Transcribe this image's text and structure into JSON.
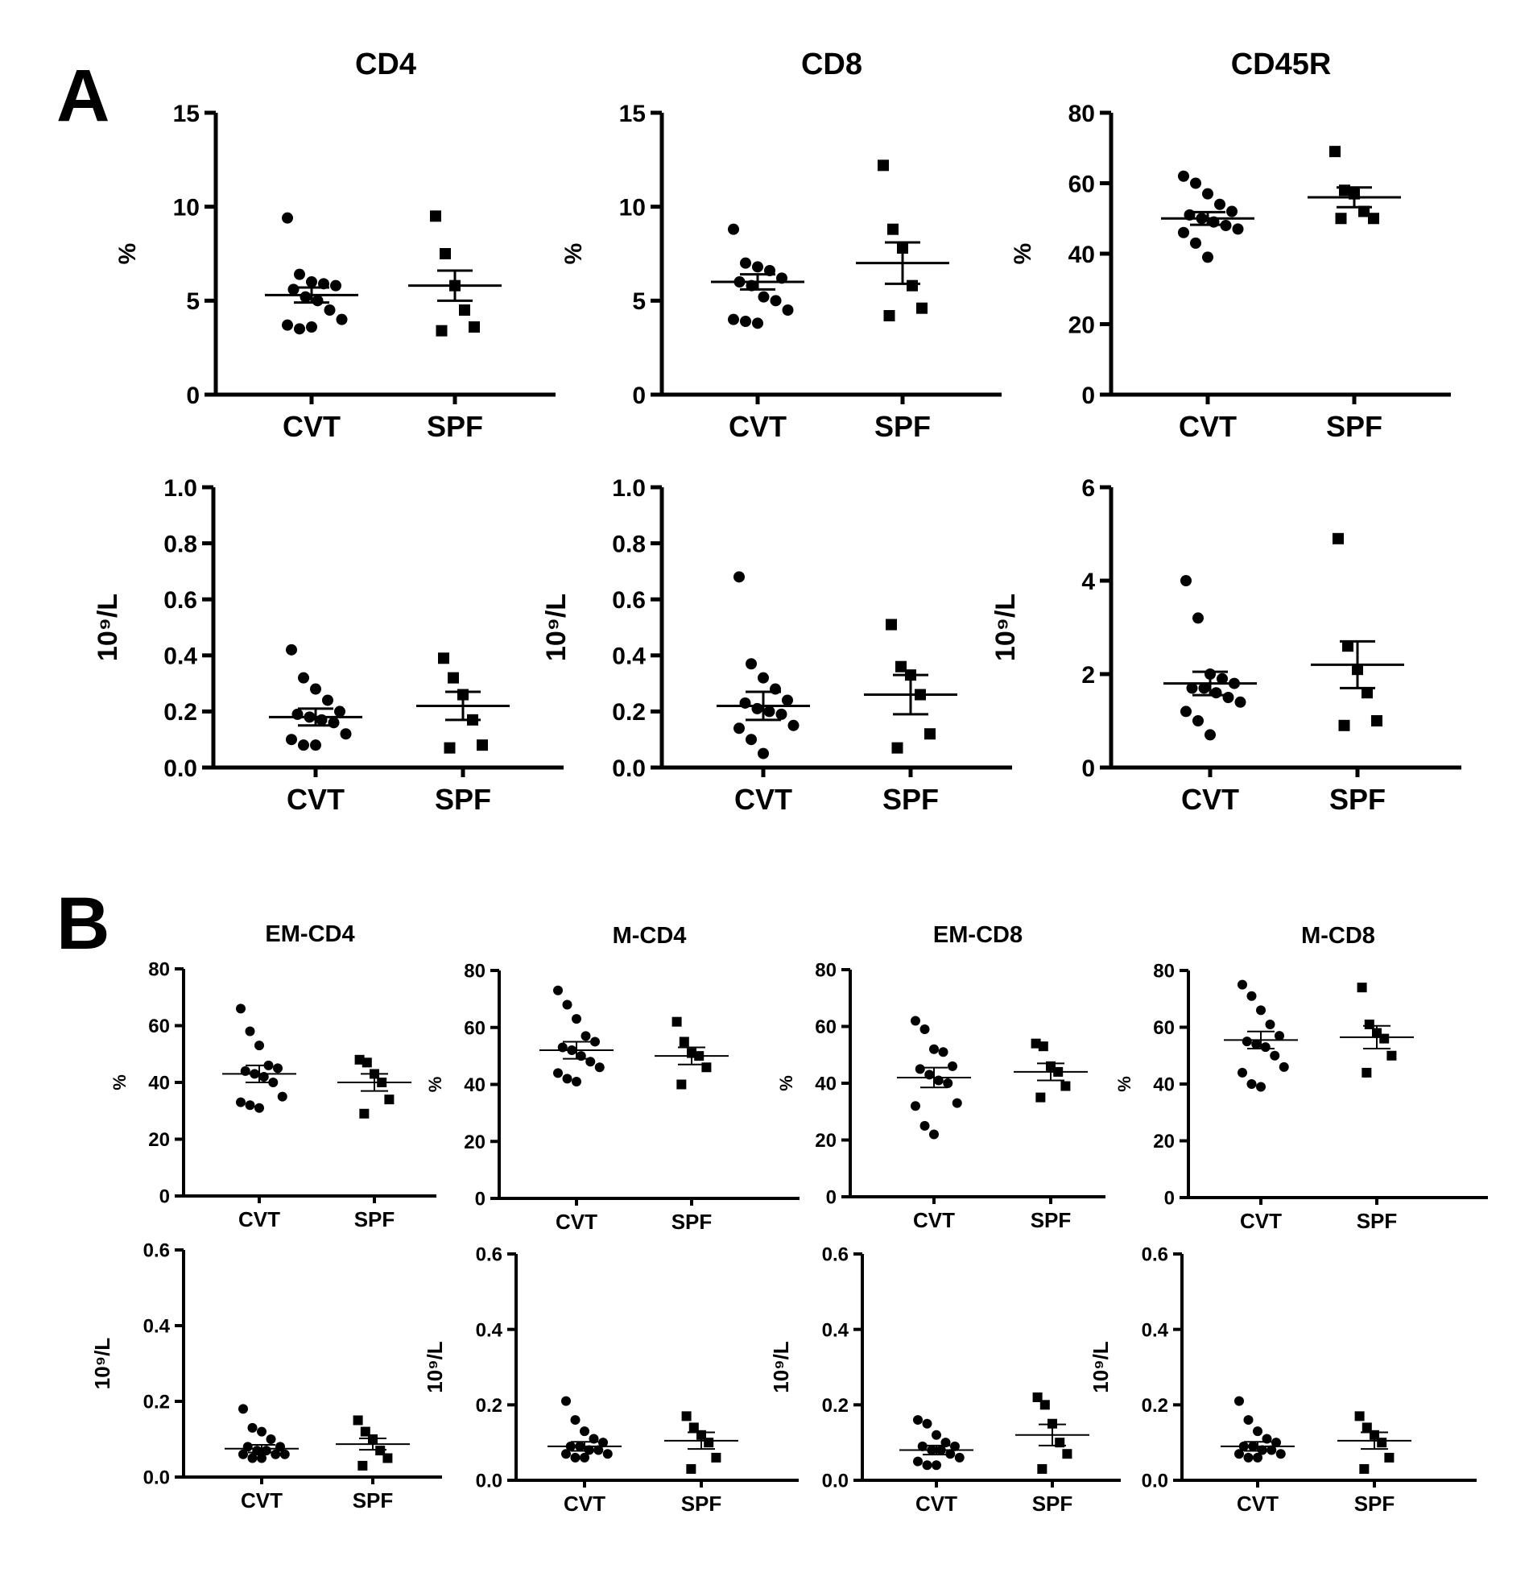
{
  "panels": {
    "a_label": "A",
    "b_label": "B"
  },
  "chart_data": [
    {
      "type": "scatter",
      "panel": "A",
      "title": "CD4",
      "ylabel": "%",
      "ylim": [
        0,
        15
      ],
      "yticks": [
        "0",
        "5",
        "10",
        "15"
      ],
      "yticks_values": [
        0,
        5,
        10,
        15
      ],
      "categories": [
        "CVT",
        "SPF"
      ],
      "groups": [
        {
          "name": "CVT",
          "marker": "circle",
          "values": [
            9.4,
            6.4,
            6.0,
            5.9,
            5.8,
            5.6,
            5.2,
            5.0,
            4.5,
            4.0,
            3.7,
            3.5,
            3.6
          ],
          "mean": 5.3,
          "sem": 0.4
        },
        {
          "name": "SPF",
          "marker": "square",
          "values": [
            9.5,
            7.5,
            5.8,
            4.5,
            3.6,
            3.4
          ],
          "mean": 5.8,
          "sem": 0.8
        }
      ]
    },
    {
      "type": "scatter",
      "panel": "A",
      "title": "CD8",
      "ylabel": "%",
      "ylim": [
        0,
        15
      ],
      "yticks": [
        "0",
        "5",
        "10",
        "15"
      ],
      "yticks_values": [
        0,
        5,
        10,
        15
      ],
      "categories": [
        "CVT",
        "SPF"
      ],
      "groups": [
        {
          "name": "CVT",
          "marker": "circle",
          "values": [
            8.8,
            7.0,
            6.8,
            6.6,
            6.2,
            6.0,
            5.8,
            5.2,
            5.0,
            4.5,
            4.0,
            3.9,
            3.8
          ],
          "mean": 6.0,
          "sem": 0.4
        },
        {
          "name": "SPF",
          "marker": "square",
          "values": [
            12.2,
            8.8,
            7.8,
            5.8,
            4.6,
            4.2
          ],
          "mean": 7.0,
          "sem": 1.1
        }
      ]
    },
    {
      "type": "scatter",
      "panel": "A",
      "title": "CD45R",
      "ylabel": "%",
      "ylim": [
        0,
        80
      ],
      "yticks": [
        "0",
        "20",
        "40",
        "60",
        "80"
      ],
      "yticks_values": [
        0,
        20,
        40,
        60,
        80
      ],
      "categories": [
        "CVT",
        "SPF"
      ],
      "groups": [
        {
          "name": "CVT",
          "marker": "circle",
          "values": [
            62,
            60,
            57,
            54,
            52,
            51,
            50,
            49,
            48,
            47,
            46,
            43,
            39
          ],
          "mean": 50.0,
          "sem": 1.8
        },
        {
          "name": "SPF",
          "marker": "square",
          "values": [
            69,
            58,
            57,
            52,
            50,
            50
          ],
          "mean": 56.0,
          "sem": 2.8
        }
      ]
    },
    {
      "type": "scatter",
      "panel": "A",
      "title": "",
      "ylabel": "10⁹/L",
      "ylim": [
        0,
        1.0
      ],
      "yticks": [
        "0.0",
        "0.2",
        "0.4",
        "0.6",
        "0.8",
        "1.0"
      ],
      "yticks_values": [
        0,
        0.2,
        0.4,
        0.6,
        0.8,
        1.0
      ],
      "categories": [
        "CVT",
        "SPF"
      ],
      "groups": [
        {
          "name": "CVT",
          "marker": "circle",
          "values": [
            0.42,
            0.32,
            0.28,
            0.24,
            0.2,
            0.19,
            0.18,
            0.17,
            0.16,
            0.12,
            0.1,
            0.08,
            0.08
          ],
          "mean": 0.18,
          "sem": 0.03
        },
        {
          "name": "SPF",
          "marker": "square",
          "values": [
            0.39,
            0.32,
            0.26,
            0.17,
            0.08,
            0.07
          ],
          "mean": 0.22,
          "sem": 0.05
        }
      ]
    },
    {
      "type": "scatter",
      "panel": "A",
      "title": "",
      "ylabel": "10⁹/L",
      "ylim": [
        0,
        1.0
      ],
      "yticks": [
        "0.0",
        "0.2",
        "0.4",
        "0.6",
        "0.8",
        "1.0"
      ],
      "yticks_values": [
        0,
        0.2,
        0.4,
        0.6,
        0.8,
        1.0
      ],
      "categories": [
        "CVT",
        "SPF"
      ],
      "groups": [
        {
          "name": "CVT",
          "marker": "circle",
          "values": [
            0.68,
            0.37,
            0.32,
            0.28,
            0.24,
            0.23,
            0.21,
            0.2,
            0.19,
            0.15,
            0.14,
            0.1,
            0.05
          ],
          "mean": 0.22,
          "sem": 0.05
        },
        {
          "name": "SPF",
          "marker": "square",
          "values": [
            0.51,
            0.36,
            0.33,
            0.26,
            0.12,
            0.07
          ],
          "mean": 0.26,
          "sem": 0.07
        }
      ]
    },
    {
      "type": "scatter",
      "panel": "A",
      "title": "",
      "ylabel": "10⁹/L",
      "ylim": [
        0,
        6
      ],
      "yticks": [
        "0",
        "2",
        "4",
        "6"
      ],
      "yticks_values": [
        0,
        2,
        4,
        6
      ],
      "categories": [
        "CVT",
        "SPF"
      ],
      "groups": [
        {
          "name": "CVT",
          "marker": "circle",
          "values": [
            4.0,
            3.2,
            2.0,
            1.9,
            1.8,
            1.7,
            1.7,
            1.6,
            1.5,
            1.4,
            1.2,
            1.0,
            0.7
          ],
          "mean": 1.8,
          "sem": 0.25
        },
        {
          "name": "SPF",
          "marker": "square",
          "values": [
            4.9,
            2.6,
            2.1,
            1.6,
            1.0,
            0.9
          ],
          "mean": 2.2,
          "sem": 0.5
        }
      ]
    },
    {
      "type": "scatter",
      "panel": "B",
      "title": "EM-CD4",
      "ylabel": "%",
      "ylim": [
        0,
        80
      ],
      "yticks": [
        "0",
        "20",
        "40",
        "60",
        "80"
      ],
      "yticks_values": [
        0,
        20,
        40,
        60,
        80
      ],
      "categories": [
        "CVT",
        "SPF"
      ],
      "groups": [
        {
          "name": "CVT",
          "marker": "circle",
          "values": [
            66,
            58,
            53,
            46,
            45,
            44,
            43,
            42,
            40,
            35,
            33,
            32,
            31
          ],
          "mean": 43,
          "sem": 3
        },
        {
          "name": "SPF",
          "marker": "square",
          "values": [
            48,
            47,
            43,
            40,
            34,
            29
          ],
          "mean": 40,
          "sem": 3
        }
      ]
    },
    {
      "type": "scatter",
      "panel": "B",
      "title": "M-CD4",
      "ylabel": "%",
      "ylim": [
        0,
        80
      ],
      "yticks": [
        "0",
        "20",
        "40",
        "60",
        "80"
      ],
      "yticks_values": [
        0,
        20,
        40,
        60,
        80
      ],
      "categories": [
        "CVT",
        "SPF"
      ],
      "groups": [
        {
          "name": "CVT",
          "marker": "circle",
          "values": [
            73,
            68,
            63,
            57,
            55,
            53,
            52,
            50,
            48,
            46,
            44,
            42,
            41
          ],
          "mean": 52,
          "sem": 3
        },
        {
          "name": "SPF",
          "marker": "square",
          "values": [
            62,
            55,
            51,
            50,
            46,
            40
          ],
          "mean": 50,
          "sem": 3
        }
      ]
    },
    {
      "type": "scatter",
      "panel": "B",
      "title": "EM-CD8",
      "ylabel": "%",
      "ylim": [
        0,
        80
      ],
      "yticks": [
        "0",
        "20",
        "40",
        "60",
        "80"
      ],
      "yticks_values": [
        0,
        20,
        40,
        60,
        80
      ],
      "categories": [
        "CVT",
        "SPF"
      ],
      "groups": [
        {
          "name": "CVT",
          "marker": "circle",
          "values": [
            62,
            59,
            52,
            51,
            46,
            45,
            43,
            41,
            40,
            33,
            32,
            25,
            22
          ],
          "mean": 42,
          "sem": 3.5
        },
        {
          "name": "SPF",
          "marker": "square",
          "values": [
            54,
            53,
            46,
            44,
            39,
            35
          ],
          "mean": 44,
          "sem": 3
        }
      ]
    },
    {
      "type": "scatter",
      "panel": "B",
      "title": "M-CD8",
      "ylabel": "%",
      "ylim": [
        0,
        80
      ],
      "yticks": [
        "0",
        "20",
        "40",
        "60",
        "80"
      ],
      "yticks_values": [
        0,
        20,
        40,
        60,
        80
      ],
      "categories": [
        "CVT",
        "SPF"
      ],
      "groups": [
        {
          "name": "CVT",
          "marker": "circle",
          "values": [
            75,
            71,
            66,
            61,
            57,
            55,
            54,
            53,
            50,
            46,
            44,
            40,
            39
          ],
          "mean": 55.5,
          "sem": 3
        },
        {
          "name": "SPF",
          "marker": "square",
          "values": [
            74,
            61,
            58,
            56,
            50,
            44
          ],
          "mean": 56.5,
          "sem": 4
        }
      ]
    },
    {
      "type": "scatter",
      "panel": "B",
      "title": "",
      "ylabel": "10⁹/L",
      "ylim": [
        0,
        0.6
      ],
      "yticks": [
        "0.0",
        "0.2",
        "0.4",
        "0.6"
      ],
      "yticks_values": [
        0,
        0.2,
        0.4,
        0.6
      ],
      "categories": [
        "CVT",
        "SPF"
      ],
      "groups": [
        {
          "name": "CVT",
          "marker": "circle",
          "values": [
            0.18,
            0.13,
            0.12,
            0.1,
            0.08,
            0.08,
            0.07,
            0.07,
            0.06,
            0.06,
            0.06,
            0.05,
            0.05
          ],
          "mean": 0.075,
          "sem": 0.01
        },
        {
          "name": "SPF",
          "marker": "square",
          "values": [
            0.15,
            0.12,
            0.1,
            0.07,
            0.05,
            0.03
          ],
          "mean": 0.087,
          "sem": 0.015
        }
      ]
    },
    {
      "type": "scatter",
      "panel": "B",
      "title": "",
      "ylabel": "10⁹/L",
      "ylim": [
        0,
        0.6
      ],
      "yticks": [
        "0.0",
        "0.2",
        "0.4",
        "0.6"
      ],
      "yticks_values": [
        0,
        0.2,
        0.4,
        0.6
      ],
      "categories": [
        "CVT",
        "SPF"
      ],
      "groups": [
        {
          "name": "CVT",
          "marker": "circle",
          "values": [
            0.21,
            0.16,
            0.13,
            0.11,
            0.1,
            0.09,
            0.09,
            0.08,
            0.08,
            0.07,
            0.07,
            0.06,
            0.06
          ],
          "mean": 0.09,
          "sem": 0.012
        },
        {
          "name": "SPF",
          "marker": "square",
          "values": [
            0.17,
            0.14,
            0.12,
            0.1,
            0.06,
            0.03
          ],
          "mean": 0.105,
          "sem": 0.022
        }
      ]
    },
    {
      "type": "scatter",
      "panel": "B",
      "title": "",
      "ylabel": "10⁹/L",
      "ylim": [
        0,
        0.6
      ],
      "yticks": [
        "0.0",
        "0.2",
        "0.4",
        "0.6"
      ],
      "yticks_values": [
        0,
        0.2,
        0.4,
        0.6
      ],
      "categories": [
        "CVT",
        "SPF"
      ],
      "groups": [
        {
          "name": "CVT",
          "marker": "circle",
          "values": [
            0.16,
            0.15,
            0.12,
            0.1,
            0.09,
            0.09,
            0.08,
            0.08,
            0.07,
            0.06,
            0.05,
            0.04,
            0.04
          ],
          "mean": 0.08,
          "sem": 0.012
        },
        {
          "name": "SPF",
          "marker": "square",
          "values": [
            0.22,
            0.2,
            0.15,
            0.1,
            0.07,
            0.03
          ],
          "mean": 0.12,
          "sem": 0.028
        }
      ]
    },
    {
      "type": "scatter",
      "panel": "B",
      "title": "",
      "ylabel": "10⁹/L",
      "ylim": [
        0,
        0.6
      ],
      "yticks": [
        "0.0",
        "0.2",
        "0.4",
        "0.6"
      ],
      "yticks_values": [
        0,
        0.2,
        0.4,
        0.6
      ],
      "categories": [
        "CVT",
        "SPF"
      ],
      "groups": [
        {
          "name": "CVT",
          "marker": "circle",
          "values": [
            0.21,
            0.16,
            0.13,
            0.11,
            0.1,
            0.09,
            0.09,
            0.08,
            0.08,
            0.07,
            0.07,
            0.06,
            0.06
          ],
          "mean": 0.09,
          "sem": 0.012
        },
        {
          "name": "SPF",
          "marker": "square",
          "values": [
            0.17,
            0.14,
            0.12,
            0.1,
            0.06,
            0.03
          ],
          "mean": 0.105,
          "sem": 0.022
        }
      ]
    }
  ]
}
